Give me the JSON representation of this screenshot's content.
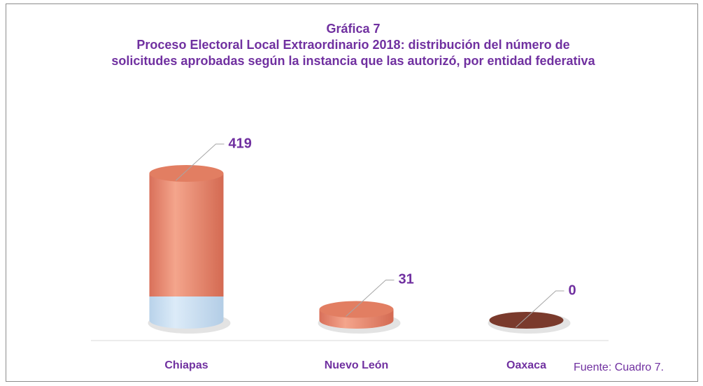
{
  "chart_data": {
    "type": "bar",
    "title": "Gráfica 7",
    "subtitle": "Proceso Electoral Local Extraordinario 2018: distribución del número de solicitudes aprobadas según la instancia que las autorizó, por entidad federativa",
    "categories": [
      "Chiapas",
      "Nuevo León",
      "Oaxaca"
    ],
    "values": [
      419,
      31,
      0
    ],
    "color": "#e9876a",
    "source": "Fuente: Cuadro 7."
  }
}
